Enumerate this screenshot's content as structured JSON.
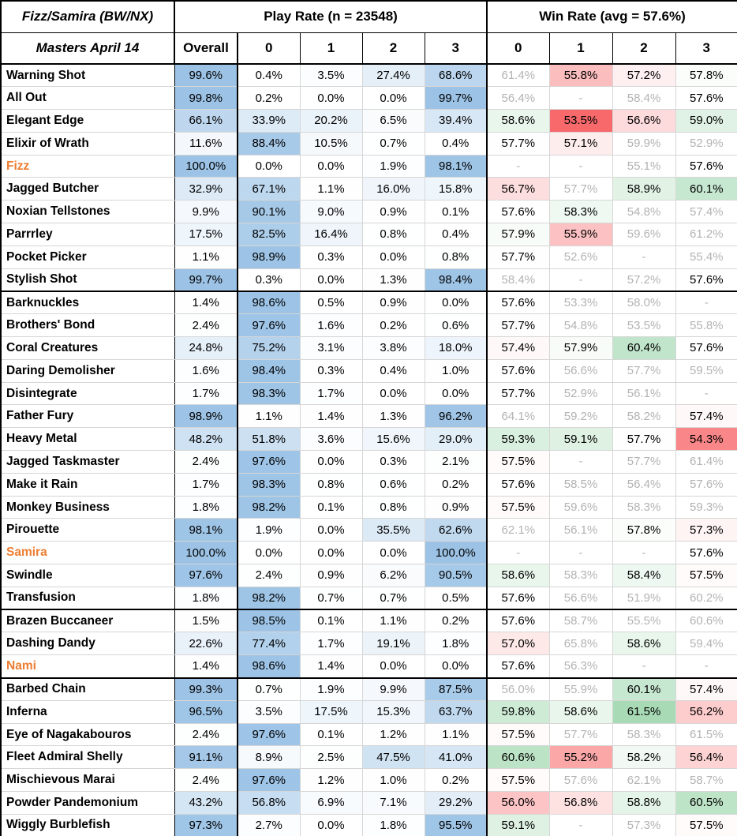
{
  "header": {
    "deck_title": "Fizz/Samira (BW/NX)",
    "subtitle": "Masters April 14",
    "play_rate_label": "Play Rate (n = 23548)",
    "win_rate_label": "Win Rate (avg = 57.6%)",
    "overall_label": "Overall",
    "copy_headers": [
      "0",
      "1",
      "2",
      "3"
    ]
  },
  "colors": {
    "play_fill_max": "#9CC3E6",
    "win_fill_low": "#F8696B",
    "win_fill_high": "#63BE7B",
    "champion_text": "#ED7D31",
    "muted_text": "#b3b3b3",
    "border_strong": "#000000",
    "border_light": "#d6d6d6"
  },
  "chart_data": {
    "type": "table",
    "title": "Fizz/Samira (BW/NX) — Masters April 14",
    "sample_size": 23548,
    "average_win_rate": 57.6,
    "columns": [
      "Card",
      "Overall",
      "Play 0",
      "Play 1",
      "Play 2",
      "Play 3",
      "Win 0",
      "Win 1",
      "Win 2",
      "Win 3"
    ],
    "notes": "play = play rate % of decks running N copies; win = win rate % by copies; null = dash (no data); gray = low-sample value",
    "rows": [
      {
        "name": "Warning Shot",
        "champion": false,
        "group_end": false,
        "play": [
          99.6,
          0.4,
          3.5,
          27.4,
          68.6
        ],
        "win": [
          61.4,
          55.8,
          57.2,
          57.8
        ],
        "win_gray": [
          true,
          false,
          false,
          false
        ]
      },
      {
        "name": "All Out",
        "champion": false,
        "group_end": false,
        "play": [
          99.8,
          0.2,
          0.0,
          0.0,
          99.7
        ],
        "win": [
          56.4,
          null,
          58.4,
          57.6
        ],
        "win_gray": [
          true,
          true,
          true,
          false
        ]
      },
      {
        "name": "Elegant Edge",
        "champion": false,
        "group_end": false,
        "play": [
          66.1,
          33.9,
          20.2,
          6.5,
          39.4
        ],
        "win": [
          58.6,
          53.5,
          56.6,
          59.0
        ],
        "win_gray": [
          false,
          false,
          false,
          false
        ]
      },
      {
        "name": "Elixir of Wrath",
        "champion": false,
        "group_end": false,
        "play": [
          11.6,
          88.4,
          10.5,
          0.7,
          0.4
        ],
        "win": [
          57.7,
          57.1,
          59.9,
          52.9
        ],
        "win_gray": [
          false,
          false,
          true,
          true
        ]
      },
      {
        "name": "Fizz",
        "champion": true,
        "group_end": false,
        "play": [
          100.0,
          0.0,
          0.0,
          1.9,
          98.1
        ],
        "win": [
          null,
          null,
          55.1,
          57.6
        ],
        "win_gray": [
          true,
          true,
          true,
          false
        ]
      },
      {
        "name": "Jagged Butcher",
        "champion": false,
        "group_end": false,
        "play": [
          32.9,
          67.1,
          1.1,
          16.0,
          15.8
        ],
        "win": [
          56.7,
          57.7,
          58.9,
          60.1
        ],
        "win_gray": [
          false,
          true,
          false,
          false
        ]
      },
      {
        "name": "Noxian Tellstones",
        "champion": false,
        "group_end": false,
        "play": [
          9.9,
          90.1,
          9.0,
          0.9,
          0.1
        ],
        "win": [
          57.6,
          58.3,
          54.8,
          57.4
        ],
        "win_gray": [
          false,
          false,
          true,
          true
        ]
      },
      {
        "name": "Parrrley",
        "champion": false,
        "group_end": false,
        "play": [
          17.5,
          82.5,
          16.4,
          0.8,
          0.4
        ],
        "win": [
          57.9,
          55.9,
          59.6,
          61.2
        ],
        "win_gray": [
          false,
          false,
          true,
          true
        ]
      },
      {
        "name": "Pocket Picker",
        "champion": false,
        "group_end": false,
        "play": [
          1.1,
          98.9,
          0.3,
          0.0,
          0.8
        ],
        "win": [
          57.7,
          52.6,
          null,
          55.4
        ],
        "win_gray": [
          false,
          true,
          true,
          true
        ]
      },
      {
        "name": "Stylish Shot",
        "champion": false,
        "group_end": true,
        "play": [
          99.7,
          0.3,
          0.0,
          1.3,
          98.4
        ],
        "win": [
          58.4,
          null,
          57.2,
          57.6
        ],
        "win_gray": [
          true,
          true,
          true,
          false
        ]
      },
      {
        "name": "Barknuckles",
        "champion": false,
        "group_end": false,
        "play": [
          1.4,
          98.6,
          0.5,
          0.9,
          0.0
        ],
        "win": [
          57.6,
          53.3,
          58.0,
          null
        ],
        "win_gray": [
          false,
          true,
          true,
          true
        ]
      },
      {
        "name": "Brothers' Bond",
        "champion": false,
        "group_end": false,
        "play": [
          2.4,
          97.6,
          1.6,
          0.2,
          0.6
        ],
        "win": [
          57.7,
          54.8,
          53.5,
          55.8
        ],
        "win_gray": [
          false,
          true,
          true,
          true
        ]
      },
      {
        "name": "Coral Creatures",
        "champion": false,
        "group_end": false,
        "play": [
          24.8,
          75.2,
          3.1,
          3.8,
          18.0
        ],
        "win": [
          57.4,
          57.9,
          60.4,
          57.6
        ],
        "win_gray": [
          false,
          false,
          false,
          false
        ]
      },
      {
        "name": "Daring Demolisher",
        "champion": false,
        "group_end": false,
        "play": [
          1.6,
          98.4,
          0.3,
          0.4,
          1.0
        ],
        "win": [
          57.6,
          56.6,
          57.7,
          59.5
        ],
        "win_gray": [
          false,
          true,
          true,
          true
        ]
      },
      {
        "name": "Disintegrate",
        "champion": false,
        "group_end": false,
        "play": [
          1.7,
          98.3,
          1.7,
          0.0,
          0.0
        ],
        "win": [
          57.7,
          52.9,
          56.1,
          null
        ],
        "win_gray": [
          false,
          true,
          true,
          true
        ]
      },
      {
        "name": "Father Fury",
        "champion": false,
        "group_end": false,
        "play": [
          98.9,
          1.1,
          1.4,
          1.3,
          96.2
        ],
        "win": [
          64.1,
          59.2,
          58.2,
          57.4
        ],
        "win_gray": [
          true,
          true,
          true,
          false
        ]
      },
      {
        "name": "Heavy Metal",
        "champion": false,
        "group_end": false,
        "play": [
          48.2,
          51.8,
          3.6,
          15.6,
          29.0
        ],
        "win": [
          59.3,
          59.1,
          57.7,
          54.3
        ],
        "win_gray": [
          false,
          false,
          false,
          false
        ]
      },
      {
        "name": "Jagged Taskmaster",
        "champion": false,
        "group_end": false,
        "play": [
          2.4,
          97.6,
          0.0,
          0.3,
          2.1
        ],
        "win": [
          57.5,
          null,
          57.7,
          61.4
        ],
        "win_gray": [
          false,
          true,
          true,
          true
        ]
      },
      {
        "name": "Make it Rain",
        "champion": false,
        "group_end": false,
        "play": [
          1.7,
          98.3,
          0.8,
          0.6,
          0.2
        ],
        "win": [
          57.6,
          58.5,
          56.4,
          57.6
        ],
        "win_gray": [
          false,
          true,
          true,
          true
        ]
      },
      {
        "name": "Monkey Business",
        "champion": false,
        "group_end": false,
        "play": [
          1.8,
          98.2,
          0.1,
          0.8,
          0.9
        ],
        "win": [
          57.5,
          59.6,
          58.3,
          59.3
        ],
        "win_gray": [
          false,
          true,
          true,
          true
        ]
      },
      {
        "name": "Pirouette",
        "champion": false,
        "group_end": false,
        "play": [
          98.1,
          1.9,
          0.0,
          35.5,
          62.6
        ],
        "win": [
          62.1,
          56.1,
          57.8,
          57.3
        ],
        "win_gray": [
          true,
          true,
          false,
          false
        ]
      },
      {
        "name": "Samira",
        "champion": true,
        "group_end": false,
        "play": [
          100.0,
          0.0,
          0.0,
          0.0,
          100.0
        ],
        "win": [
          null,
          null,
          null,
          57.6
        ],
        "win_gray": [
          true,
          true,
          true,
          false
        ]
      },
      {
        "name": "Swindle",
        "champion": false,
        "group_end": false,
        "play": [
          97.6,
          2.4,
          0.9,
          6.2,
          90.5
        ],
        "win": [
          58.6,
          58.3,
          58.4,
          57.5
        ],
        "win_gray": [
          false,
          true,
          false,
          false
        ]
      },
      {
        "name": "Transfusion",
        "champion": false,
        "group_end": true,
        "play": [
          1.8,
          98.2,
          0.7,
          0.7,
          0.5
        ],
        "win": [
          57.6,
          56.6,
          51.9,
          60.2
        ],
        "win_gray": [
          false,
          true,
          true,
          true
        ]
      },
      {
        "name": "Brazen Buccaneer",
        "champion": false,
        "group_end": false,
        "play": [
          1.5,
          98.5,
          0.1,
          1.1,
          0.2
        ],
        "win": [
          57.6,
          58.7,
          55.5,
          60.6
        ],
        "win_gray": [
          false,
          true,
          true,
          true
        ]
      },
      {
        "name": "Dashing Dandy",
        "champion": false,
        "group_end": false,
        "play": [
          22.6,
          77.4,
          1.7,
          19.1,
          1.8
        ],
        "win": [
          57.0,
          65.8,
          58.6,
          59.4
        ],
        "win_gray": [
          false,
          true,
          false,
          true
        ]
      },
      {
        "name": "Nami",
        "champion": true,
        "group_end": true,
        "play": [
          1.4,
          98.6,
          1.4,
          0.0,
          0.0
        ],
        "win": [
          57.6,
          56.3,
          null,
          null
        ],
        "win_gray": [
          false,
          true,
          true,
          true
        ]
      },
      {
        "name": "Barbed Chain",
        "champion": false,
        "group_end": false,
        "play": [
          99.3,
          0.7,
          1.9,
          9.9,
          87.5
        ],
        "win": [
          56.0,
          55.9,
          60.1,
          57.4
        ],
        "win_gray": [
          true,
          true,
          false,
          false
        ]
      },
      {
        "name": "Inferna",
        "champion": false,
        "group_end": false,
        "play": [
          96.5,
          3.5,
          17.5,
          15.3,
          63.7
        ],
        "win": [
          59.8,
          58.6,
          61.5,
          56.2
        ],
        "win_gray": [
          false,
          false,
          false,
          false
        ]
      },
      {
        "name": "Eye of Nagakabouros",
        "champion": false,
        "group_end": false,
        "play": [
          2.4,
          97.6,
          0.1,
          1.2,
          1.1
        ],
        "win": [
          57.5,
          57.7,
          58.3,
          61.5
        ],
        "win_gray": [
          false,
          true,
          true,
          true
        ]
      },
      {
        "name": "Fleet Admiral Shelly",
        "champion": false,
        "group_end": false,
        "play": [
          91.1,
          8.9,
          2.5,
          47.5,
          41.0
        ],
        "win": [
          60.6,
          55.2,
          58.2,
          56.4
        ],
        "win_gray": [
          false,
          false,
          false,
          false
        ]
      },
      {
        "name": "Mischievous Marai",
        "champion": false,
        "group_end": false,
        "play": [
          2.4,
          97.6,
          1.2,
          1.0,
          0.2
        ],
        "win": [
          57.5,
          57.6,
          62.1,
          58.7
        ],
        "win_gray": [
          false,
          true,
          true,
          true
        ]
      },
      {
        "name": "Powder Pandemonium",
        "champion": false,
        "group_end": false,
        "play": [
          43.2,
          56.8,
          6.9,
          7.1,
          29.2
        ],
        "win": [
          56.0,
          56.8,
          58.8,
          60.5
        ],
        "win_gray": [
          false,
          false,
          false,
          false
        ]
      },
      {
        "name": "Wiggly Burblefish",
        "champion": false,
        "group_end": false,
        "play": [
          97.3,
          2.7,
          0.0,
          1.8,
          95.5
        ],
        "win": [
          59.1,
          null,
          57.3,
          57.5
        ],
        "win_gray": [
          false,
          true,
          true,
          false
        ]
      }
    ]
  }
}
